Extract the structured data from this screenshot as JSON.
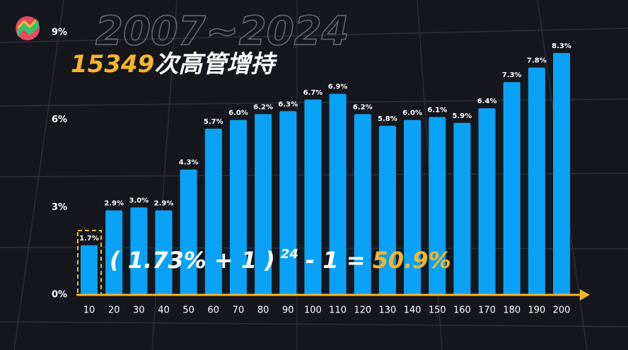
{
  "chart_data": {
    "type": "bar",
    "title": {
      "number": "15349",
      "text": "次高管增持"
    },
    "subtitle": "2007~2024",
    "annotations": {
      "formula_left": "( 1.73% + 1 )",
      "exponent": "24",
      "formula_mid": "- 1 =",
      "result": "50.9%"
    },
    "categories": [
      "10",
      "20",
      "30",
      "40",
      "50",
      "60",
      "70",
      "80",
      "90",
      "100",
      "110",
      "120",
      "130",
      "140",
      "150",
      "160",
      "170",
      "180",
      "190",
      "200"
    ],
    "values": [
      1.7,
      2.9,
      3.0,
      2.9,
      4.3,
      5.7,
      6.0,
      6.2,
      6.3,
      6.7,
      6.9,
      6.2,
      5.8,
      6.0,
      6.1,
      5.9,
      6.4,
      7.3,
      7.8,
      8.3
    ],
    "value_labels": [
      "1.7%",
      "2.9%",
      "3.0%",
      "2.9%",
      "4.3%",
      "5.7%",
      "6.0%",
      "6.2%",
      "6.3%",
      "6.7%",
      "6.9%",
      "6.2%",
      "5.8%",
      "6.0%",
      "6.1%",
      "5.9%",
      "6.4%",
      "7.3%",
      "7.8%",
      "8.3%"
    ],
    "color": "#0aa2f7",
    "ylim": [
      0,
      9
    ],
    "yticks": [
      {
        "value": 0,
        "label": "0%"
      },
      {
        "value": 3,
        "label": "3%"
      },
      {
        "value": 6,
        "label": "6%"
      },
      {
        "value": 9,
        "label": "9%"
      }
    ],
    "grid": false
  }
}
